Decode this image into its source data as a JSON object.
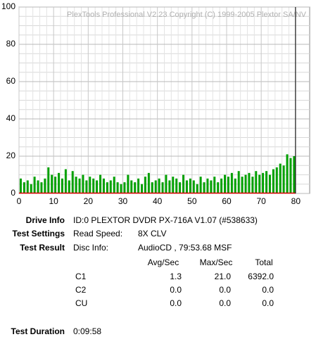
{
  "chart_data": {
    "type": "bar",
    "annotation": "PlexTools Professional V2.23 Copyright (C) 1999-2005 Plextor SA/NV",
    "xlim": [
      0,
      84
    ],
    "ylim": [
      0,
      100
    ],
    "xticks": [
      0,
      10,
      20,
      30,
      40,
      50,
      60,
      70,
      80
    ],
    "yticks": [
      0,
      20,
      40,
      60,
      80,
      100
    ],
    "grid": true,
    "end_marker": 79.9,
    "series": [
      {
        "name": "C1",
        "color": "#00a000",
        "x": [
          0.5,
          1.5,
          2.5,
          3.5,
          4.5,
          5.5,
          6.5,
          7.5,
          8.5,
          9.5,
          10.5,
          11.5,
          12.5,
          13.5,
          14.5,
          15.5,
          16.5,
          17.5,
          18.5,
          19.5,
          20.5,
          21.5,
          22.5,
          23.5,
          24.5,
          25.5,
          26.5,
          27.5,
          28.5,
          29.5,
          30.5,
          31.5,
          32.5,
          33.5,
          34.5,
          35.5,
          36.5,
          37.5,
          38.5,
          39.5,
          40.5,
          41.5,
          42.5,
          43.5,
          44.5,
          45.5,
          46.5,
          47.5,
          48.5,
          49.5,
          50.5,
          51.5,
          52.5,
          53.5,
          54.5,
          55.5,
          56.5,
          57.5,
          58.5,
          59.5,
          60.5,
          61.5,
          62.5,
          63.5,
          64.5,
          65.5,
          66.5,
          67.5,
          68.5,
          69.5,
          70.5,
          71.5,
          72.5,
          73.5,
          74.5,
          75.5,
          76.5,
          77.5,
          78.5,
          79.5
        ],
        "values": [
          8,
          6,
          7,
          5,
          9,
          7,
          6,
          8,
          14,
          10,
          9,
          11,
          8,
          13,
          7,
          12,
          9,
          8,
          10,
          7,
          9,
          8,
          7,
          10,
          8,
          6,
          7,
          9,
          6,
          5,
          6,
          10,
          7,
          6,
          8,
          5,
          9,
          11,
          6,
          7,
          8,
          6,
          10,
          7,
          9,
          8,
          6,
          10,
          7,
          8,
          7,
          5,
          9,
          6,
          8,
          7,
          9,
          6,
          8,
          10,
          9,
          11,
          8,
          12,
          9,
          10,
          11,
          9,
          12,
          10,
          11,
          12,
          10,
          13,
          14,
          16,
          15,
          21,
          19,
          20
        ]
      },
      {
        "name": "C2",
        "color": "#e00000",
        "x": [
          0,
          79.9
        ],
        "values": [
          0,
          0
        ]
      }
    ]
  },
  "info": {
    "drive_info": {
      "label": "Drive Info",
      "value": "ID:0 PLEXTOR DVDR PX-716A V1.07 (#538633)"
    },
    "test_settings": {
      "label": "Test Settings",
      "key": "Read Speed:",
      "value": "8X CLV"
    },
    "test_result": {
      "label": "Test Result",
      "key": "Disc Info:",
      "value": "AudioCD , 79:53.68 MSF"
    },
    "table": {
      "headers": [
        "Avg/Sec",
        "Max/Sec",
        "Total"
      ],
      "rows": [
        [
          "C1",
          "1.3",
          "21.0",
          "6392.0"
        ],
        [
          "C2",
          "0.0",
          "0.0",
          "0.0"
        ],
        [
          "CU",
          "0.0",
          "0.0",
          "0.0"
        ]
      ]
    },
    "test_duration": {
      "label": "Test Duration",
      "value": "0:09:58"
    }
  }
}
